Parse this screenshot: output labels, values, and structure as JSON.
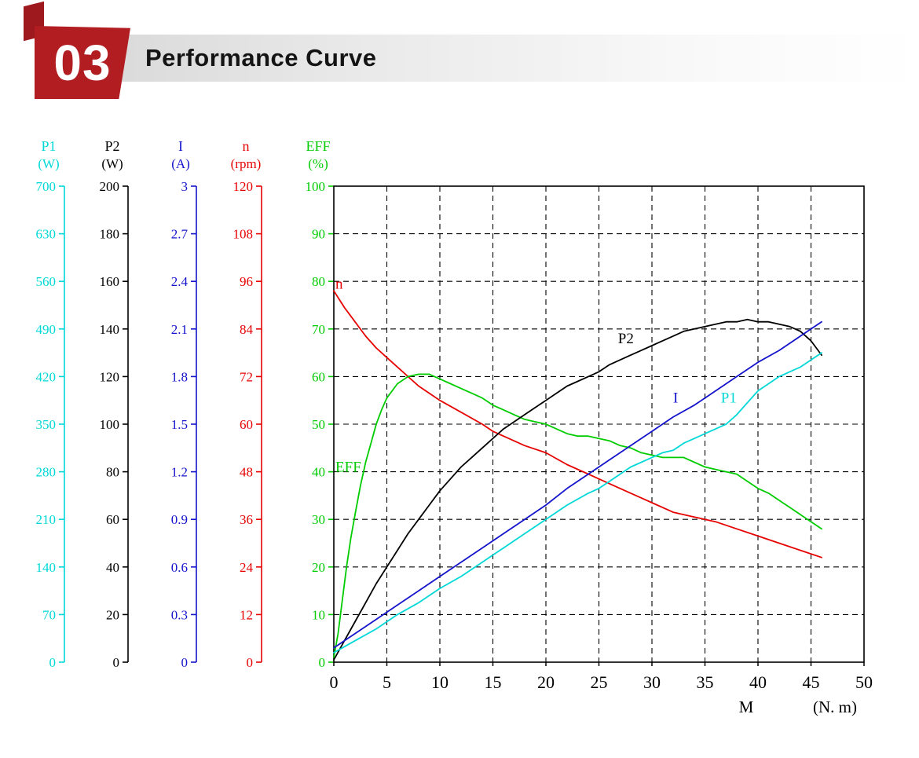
{
  "header": {
    "badge": "03",
    "title": "Performance Curve",
    "badge_color": "#b21d22"
  },
  "chart_data": {
    "type": "line",
    "title": "Performance Curve",
    "grid": "dashed",
    "legend": "inline-curve-labels",
    "x_axis": {
      "name": "M",
      "unit": "(N. m)",
      "min": 0,
      "max": 50,
      "ticks": [
        0,
        5,
        10,
        15,
        20,
        25,
        30,
        35,
        40,
        45,
        50
      ]
    },
    "y_axes": [
      {
        "name": "P1",
        "unit": "(W)",
        "color": "#00d8d8",
        "min": 0,
        "max": 700,
        "ticks": [
          "700",
          "630",
          "560",
          "490",
          "420",
          "350",
          "280",
          "210",
          "140",
          "70",
          "0"
        ]
      },
      {
        "name": "P2",
        "unit": "(W)",
        "color": "#000000",
        "min": 0,
        "max": 200,
        "ticks": [
          "200",
          "180",
          "160",
          "140",
          "120",
          "100",
          "80",
          "60",
          "40",
          "20",
          "0"
        ]
      },
      {
        "name": "I",
        "unit": "(A)",
        "color": "#1414cc",
        "min": 0,
        "max": 3,
        "ticks": [
          "3",
          "2.7",
          "2.4",
          "2.1",
          "1.8",
          "1.5",
          "1.2",
          "0.9",
          "0.6",
          "0.3",
          "0"
        ]
      },
      {
        "name": "n",
        "unit": "(rpm)",
        "color": "#e60000",
        "min": 0,
        "max": 120,
        "ticks": [
          "120",
          "108",
          "96",
          "84",
          "72",
          "60",
          "48",
          "36",
          "24",
          "12",
          "0"
        ]
      },
      {
        "name": "EFF",
        "unit": "(%)",
        "color": "#00cc00",
        "min": 0,
        "max": 100,
        "ticks": [
          "100",
          "90",
          "80",
          "70",
          "60",
          "50",
          "40",
          "30",
          "20",
          "10",
          "0"
        ]
      }
    ],
    "points_unit": "x in N.m, y in percent of each axis full scale (EFF axis values)",
    "series": [
      {
        "name": "n",
        "color": "#e60000",
        "axis": "n",
        "label_pos": {
          "x": 0.15,
          "y": 78.5
        },
        "points": [
          [
            0,
            78
          ],
          [
            1,
            74.5
          ],
          [
            2,
            71.5
          ],
          [
            3,
            68.5
          ],
          [
            4,
            66
          ],
          [
            5,
            64
          ],
          [
            6,
            62
          ],
          [
            7,
            60
          ],
          [
            8,
            58
          ],
          [
            9,
            56.5
          ],
          [
            10,
            55
          ],
          [
            12,
            52.5
          ],
          [
            14,
            50
          ],
          [
            15,
            48.5
          ],
          [
            16,
            47.5
          ],
          [
            18,
            45.5
          ],
          [
            20,
            44
          ],
          [
            22,
            41.5
          ],
          [
            24,
            39.5
          ],
          [
            25,
            38.5
          ],
          [
            26,
            37.5
          ],
          [
            28,
            35.5
          ],
          [
            30,
            33.5
          ],
          [
            32,
            31.5
          ],
          [
            34,
            30.5
          ],
          [
            35,
            30
          ],
          [
            36,
            29.5
          ],
          [
            38,
            28
          ],
          [
            40,
            26.5
          ],
          [
            42,
            25
          ],
          [
            44,
            23.5
          ],
          [
            46,
            22
          ]
        ]
      },
      {
        "name": "EFF",
        "color": "#00cc00",
        "axis": "EFF",
        "label_pos": {
          "x": 0.15,
          "y": 40
        },
        "points": [
          [
            0,
            1
          ],
          [
            0.4,
            6
          ],
          [
            0.8,
            13
          ],
          [
            1.2,
            20
          ],
          [
            1.6,
            26
          ],
          [
            2,
            31
          ],
          [
            2.5,
            37
          ],
          [
            3,
            42
          ],
          [
            3.5,
            46
          ],
          [
            4,
            50
          ],
          [
            4.5,
            53
          ],
          [
            5,
            55.5
          ],
          [
            6,
            58.5
          ],
          [
            7,
            60
          ],
          [
            8,
            60.5
          ],
          [
            9,
            60.5
          ],
          [
            10,
            59.5
          ],
          [
            11,
            58.5
          ],
          [
            12,
            57.5
          ],
          [
            13,
            56.5
          ],
          [
            14,
            55.5
          ],
          [
            15,
            54
          ],
          [
            16,
            53
          ],
          [
            17,
            52
          ],
          [
            18,
            51
          ],
          [
            19,
            50.5
          ],
          [
            20,
            50
          ],
          [
            21,
            49
          ],
          [
            22,
            48
          ],
          [
            23,
            47.5
          ],
          [
            24,
            47.5
          ],
          [
            25,
            47
          ],
          [
            26,
            46.5
          ],
          [
            27,
            45.5
          ],
          [
            28,
            45
          ],
          [
            29,
            44
          ],
          [
            30,
            43.5
          ],
          [
            31,
            43
          ],
          [
            32,
            43
          ],
          [
            33,
            43
          ],
          [
            34,
            42
          ],
          [
            35,
            41
          ],
          [
            36,
            40.5
          ],
          [
            37,
            40
          ],
          [
            38,
            39.5
          ],
          [
            39,
            38
          ],
          [
            40,
            36.5
          ],
          [
            41,
            35.5
          ],
          [
            42,
            34
          ],
          [
            43,
            32.5
          ],
          [
            44,
            31
          ],
          [
            45,
            29.5
          ],
          [
            46,
            28
          ]
        ]
      },
      {
        "name": "P2",
        "color": "#000000",
        "axis": "P2",
        "label_pos": {
          "x": 26.8,
          "y": 67
        },
        "points": [
          [
            0,
            0.5
          ],
          [
            1,
            4.5
          ],
          [
            2,
            8.5
          ],
          [
            3,
            12.5
          ],
          [
            4,
            16.5
          ],
          [
            5,
            20
          ],
          [
            6,
            23.5
          ],
          [
            7,
            27
          ],
          [
            8,
            30
          ],
          [
            9,
            33
          ],
          [
            10,
            36
          ],
          [
            11,
            38.5
          ],
          [
            12,
            41
          ],
          [
            13,
            43
          ],
          [
            14,
            45
          ],
          [
            15,
            47
          ],
          [
            16,
            49
          ],
          [
            17,
            50.5
          ],
          [
            18,
            52
          ],
          [
            19,
            53.5
          ],
          [
            20,
            55
          ],
          [
            21,
            56.5
          ],
          [
            22,
            58
          ],
          [
            23,
            59
          ],
          [
            24,
            60
          ],
          [
            25,
            61
          ],
          [
            26,
            62.5
          ],
          [
            27,
            63.5
          ],
          [
            28,
            64.5
          ],
          [
            29,
            65.5
          ],
          [
            30,
            66.5
          ],
          [
            31,
            67.5
          ],
          [
            32,
            68.5
          ],
          [
            33,
            69.5
          ],
          [
            34,
            70
          ],
          [
            35,
            70.5
          ],
          [
            36,
            71
          ],
          [
            37,
            71.5
          ],
          [
            38,
            71.5
          ],
          [
            39,
            72
          ],
          [
            40,
            71.5
          ],
          [
            41,
            71.5
          ],
          [
            42,
            71
          ],
          [
            43,
            70.5
          ],
          [
            44,
            69.5
          ],
          [
            45,
            67.5
          ],
          [
            46,
            64.5
          ]
        ]
      },
      {
        "name": "I",
        "color": "#1414cc",
        "axis": "I",
        "label_pos": {
          "x": 32,
          "y": 54.5
        },
        "points": [
          [
            0,
            3
          ],
          [
            2,
            6
          ],
          [
            4,
            9
          ],
          [
            5,
            10.5
          ],
          [
            6,
            12
          ],
          [
            8,
            15
          ],
          [
            10,
            18
          ],
          [
            12,
            21
          ],
          [
            14,
            24
          ],
          [
            15,
            25.5
          ],
          [
            16,
            27
          ],
          [
            18,
            30
          ],
          [
            20,
            33
          ],
          [
            22,
            36.5
          ],
          [
            24,
            39.5
          ],
          [
            25,
            41
          ],
          [
            26,
            42.5
          ],
          [
            28,
            45.5
          ],
          [
            30,
            48.5
          ],
          [
            32,
            51.5
          ],
          [
            34,
            54
          ],
          [
            35,
            55.5
          ],
          [
            36,
            57
          ],
          [
            38,
            60
          ],
          [
            40,
            63
          ],
          [
            42,
            65.5
          ],
          [
            43,
            67
          ],
          [
            44,
            68.5
          ],
          [
            45,
            70
          ],
          [
            46,
            71.5
          ]
        ]
      },
      {
        "name": "P1",
        "color": "#00d8d8",
        "axis": "P1",
        "label_pos": {
          "x": 36.5,
          "y": 54.5
        },
        "points": [
          [
            0,
            2
          ],
          [
            2,
            4.5
          ],
          [
            4,
            7
          ],
          [
            5,
            8.5
          ],
          [
            6,
            10
          ],
          [
            8,
            12.5
          ],
          [
            10,
            15.5
          ],
          [
            12,
            18
          ],
          [
            14,
            21
          ],
          [
            15,
            22.5
          ],
          [
            16,
            24
          ],
          [
            18,
            27
          ],
          [
            20,
            30
          ],
          [
            22,
            33
          ],
          [
            24,
            35.5
          ],
          [
            25,
            36.5
          ],
          [
            26,
            38
          ],
          [
            28,
            41
          ],
          [
            30,
            43
          ],
          [
            31,
            44
          ],
          [
            32,
            44.5
          ],
          [
            33,
            46
          ],
          [
            34,
            47
          ],
          [
            35,
            48
          ],
          [
            36,
            49
          ],
          [
            37,
            50
          ],
          [
            38,
            52
          ],
          [
            39,
            54.5
          ],
          [
            40,
            57
          ],
          [
            41,
            58.5
          ],
          [
            42,
            60
          ],
          [
            43,
            61
          ],
          [
            44,
            62
          ],
          [
            45,
            63.5
          ],
          [
            46,
            65
          ]
        ]
      }
    ]
  }
}
